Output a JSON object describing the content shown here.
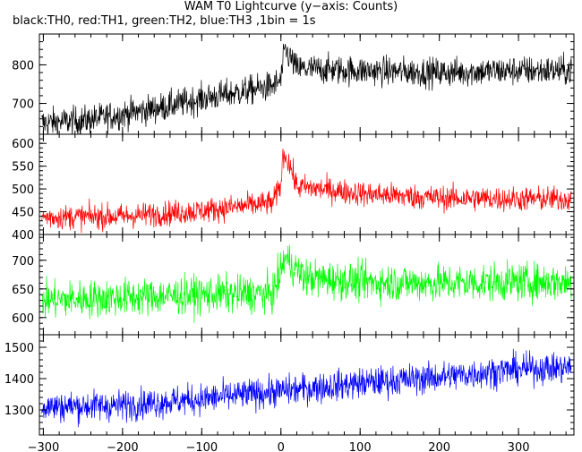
{
  "title": "WAM T0 Lightcurve (y−axis: Counts)",
  "subtitle": "black:TH0, red:TH1, green:TH2, blue:TH3 ,1bin = 1s",
  "chart_data": {
    "type": "line",
    "x_range": [
      -305,
      370
    ],
    "x_ticks": [
      -300,
      -200,
      -100,
      0,
      100,
      200,
      300
    ],
    "x_tick_labels": [
      "−300",
      "−200",
      "−100",
      "0",
      "100",
      "200",
      "300"
    ],
    "panels": [
      {
        "name": "TH0",
        "color": "#000000",
        "ylim": [
          620,
          880
        ],
        "y_ticks": [
          700,
          800
        ],
        "y_tick_labels": [
          "700",
          "800"
        ],
        "series": [
          {
            "x": [
              -300,
              -250,
              -200,
              -150,
              -100,
              -50,
              -10,
              0,
              5,
              20,
              100,
              200,
              300,
              365
            ],
            "y": [
              650,
              655,
              672,
              690,
              712,
              730,
              745,
              760,
              840,
              790,
              785,
              780,
              785,
              785
            ],
            "noise": 35
          }
        ]
      },
      {
        "name": "TH1",
        "color": "#ff0000",
        "ylim": [
          400,
          620
        ],
        "y_ticks": [
          400,
          450,
          500,
          550,
          600
        ],
        "y_tick_labels": [
          "400",
          "450",
          "500",
          "550",
          "600"
        ],
        "series": [
          {
            "x": [
              -300,
              -200,
              -100,
              -50,
              -10,
              0,
              3,
              10,
              20,
              50,
              100,
              200,
              300,
              365
            ],
            "y": [
              438,
              440,
              452,
              462,
              470,
              510,
              580,
              560,
              505,
              500,
              490,
              480,
              478,
              478
            ],
            "noise": 25
          }
        ]
      },
      {
        "name": "TH2",
        "color": "#00ff00",
        "ylim": [
          570,
          745
        ],
        "y_ticks": [
          600,
          650,
          700
        ],
        "y_tick_labels": [
          "600",
          "650",
          "700"
        ],
        "series": [
          {
            "x": [
              -300,
              -200,
              -100,
              -10,
              0,
              5,
              15,
              30,
              100,
              200,
              300,
              365
            ],
            "y": [
              630,
              635,
              640,
              642,
              680,
              705,
              690,
              670,
              662,
              660,
              662,
              662
            ],
            "noise": 30
          }
        ]
      },
      {
        "name": "TH3",
        "color": "#0000ff",
        "ylim": [
          1220,
          1540
        ],
        "y_ticks": [
          1300,
          1400,
          1500
        ],
        "y_tick_labels": [
          "1300",
          "1400",
          "1500"
        ],
        "series": [
          {
            "x": [
              -300,
              -200,
              -100,
              0,
              100,
              200,
              300,
              365
            ],
            "y": [
              1310,
              1315,
              1335,
              1360,
              1385,
              1405,
              1430,
              1435
            ],
            "noise": 45
          }
        ]
      }
    ]
  }
}
